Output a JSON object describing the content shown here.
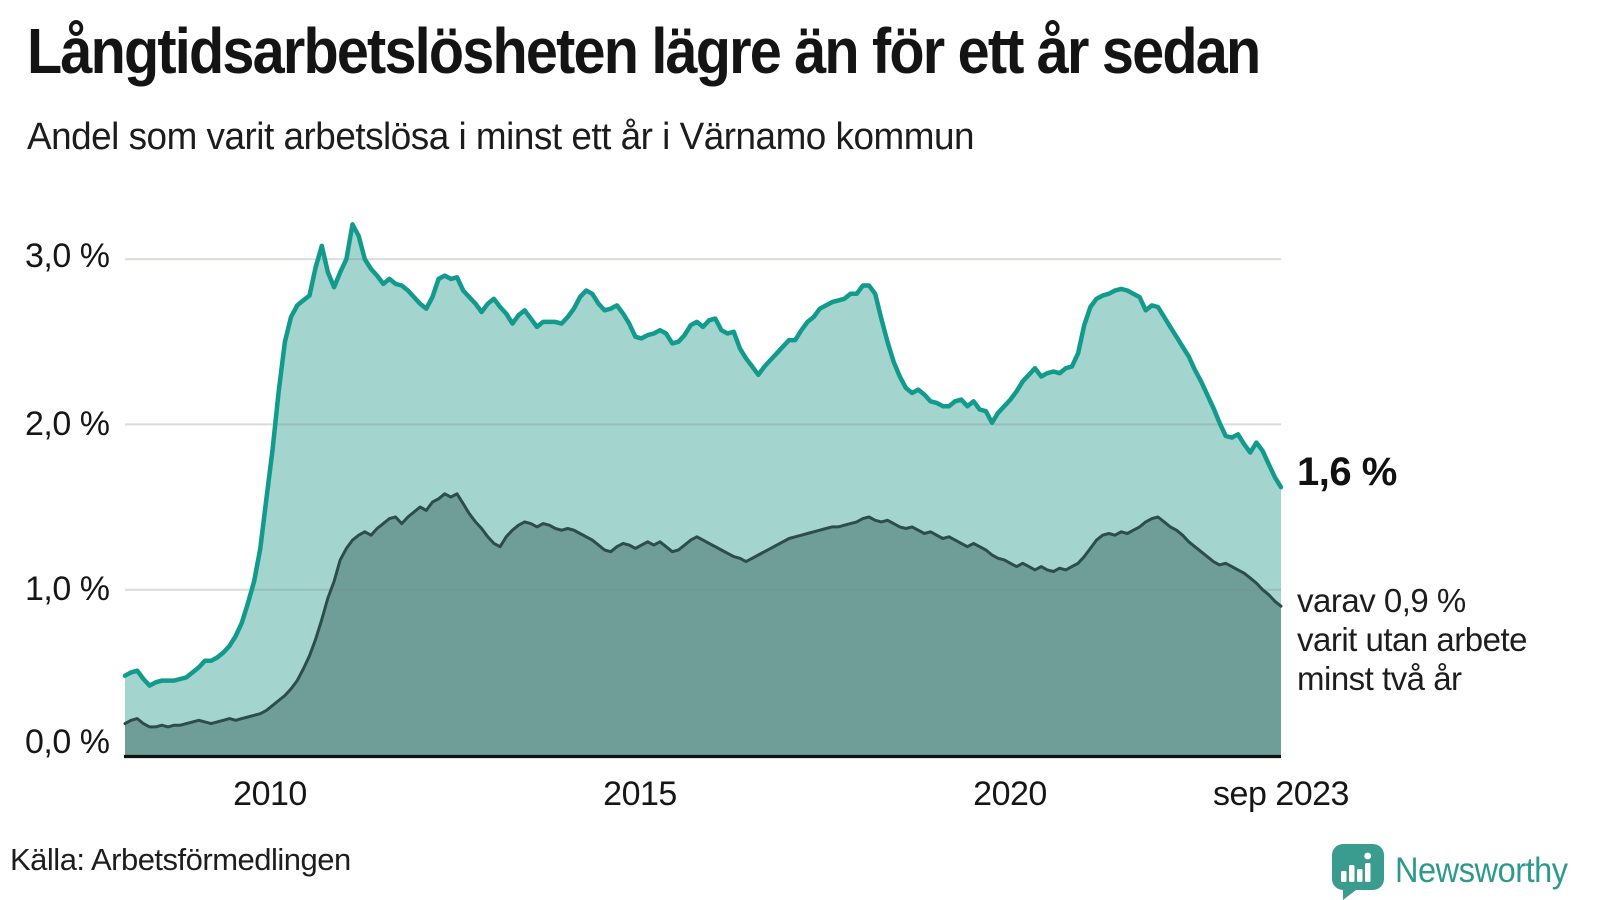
{
  "chart_data": {
    "type": "area",
    "title": "Långtidsarbetslösheten lägre än för ett år sedan",
    "subtitle": "Andel som varit arbetslösa i minst ett år i Värnamo kommun",
    "unit": "percent",
    "period": {
      "start": "2008-01",
      "end": "2023-09",
      "frequency": "monthly"
    },
    "ylim": [
      0,
      3.35
    ],
    "grid": "horizontal",
    "y_ticks": [
      {
        "value": 0,
        "label": "0,0 %"
      },
      {
        "value": 1,
        "label": "1,0 %"
      },
      {
        "value": 2,
        "label": "2,0 %"
      },
      {
        "value": 3,
        "label": "3,0 %"
      }
    ],
    "x_ticks": [
      {
        "label": "2010"
      },
      {
        "label": "2015"
      },
      {
        "label": "2020"
      },
      {
        "label": "sep 2023"
      }
    ],
    "series": [
      {
        "name": "Andel arbetslösa minst ett år",
        "color": "#129a8d",
        "fill": "#a3d4cd",
        "last_value": 1.6,
        "values": [
          0.48,
          0.5,
          0.51,
          0.46,
          0.42,
          0.44,
          0.45,
          0.45,
          0.45,
          0.46,
          0.47,
          0.5,
          0.53,
          0.57,
          0.57,
          0.59,
          0.62,
          0.66,
          0.72,
          0.8,
          0.92,
          1.05,
          1.25,
          1.55,
          1.85,
          2.2,
          2.5,
          2.65,
          2.72,
          2.75,
          2.78,
          2.95,
          3.08,
          2.92,
          2.83,
          2.92,
          3.0,
          3.21,
          3.14,
          3.0,
          2.94,
          2.9,
          2.85,
          2.88,
          2.85,
          2.84,
          2.81,
          2.77,
          2.73,
          2.7,
          2.77,
          2.88,
          2.9,
          2.88,
          2.89,
          2.81,
          2.77,
          2.73,
          2.68,
          2.73,
          2.76,
          2.71,
          2.67,
          2.61,
          2.66,
          2.69,
          2.64,
          2.59,
          2.62,
          2.62,
          2.62,
          2.61,
          2.65,
          2.7,
          2.77,
          2.81,
          2.79,
          2.73,
          2.69,
          2.7,
          2.72,
          2.67,
          2.61,
          2.53,
          2.52,
          2.54,
          2.55,
          2.57,
          2.55,
          2.49,
          2.5,
          2.54,
          2.6,
          2.62,
          2.59,
          2.63,
          2.64,
          2.57,
          2.55,
          2.56,
          2.46,
          2.4,
          2.35,
          2.3,
          2.35,
          2.39,
          2.43,
          2.47,
          2.51,
          2.51,
          2.57,
          2.62,
          2.65,
          2.7,
          2.72,
          2.74,
          2.75,
          2.76,
          2.79,
          2.79,
          2.84,
          2.84,
          2.79,
          2.64,
          2.5,
          2.38,
          2.29,
          2.22,
          2.19,
          2.21,
          2.18,
          2.14,
          2.13,
          2.11,
          2.11,
          2.14,
          2.15,
          2.11,
          2.14,
          2.09,
          2.08,
          2.01,
          2.07,
          2.11,
          2.15,
          2.2,
          2.26,
          2.3,
          2.34,
          2.29,
          2.31,
          2.32,
          2.31,
          2.34,
          2.35,
          2.43,
          2.6,
          2.71,
          2.76,
          2.78,
          2.79,
          2.81,
          2.82,
          2.81,
          2.79,
          2.77,
          2.69,
          2.72,
          2.71,
          2.65,
          2.59,
          2.53,
          2.47,
          2.41,
          2.33,
          2.26,
          2.18,
          2.1,
          2.01,
          1.93,
          1.92,
          1.94,
          1.88,
          1.83,
          1.89,
          1.84,
          1.76,
          1.68,
          1.62
        ]
      },
      {
        "name": "Andel arbetslösa minst två år",
        "color": "#2d4d49",
        "fill": "#6f9e99",
        "last_value": 0.9,
        "values": [
          0.19,
          0.21,
          0.22,
          0.19,
          0.17,
          0.17,
          0.18,
          0.17,
          0.18,
          0.18,
          0.19,
          0.2,
          0.21,
          0.2,
          0.19,
          0.2,
          0.21,
          0.22,
          0.21,
          0.22,
          0.23,
          0.24,
          0.25,
          0.27,
          0.3,
          0.33,
          0.36,
          0.4,
          0.45,
          0.52,
          0.6,
          0.7,
          0.82,
          0.95,
          1.05,
          1.18,
          1.25,
          1.3,
          1.33,
          1.35,
          1.33,
          1.37,
          1.4,
          1.43,
          1.44,
          1.4,
          1.44,
          1.47,
          1.5,
          1.48,
          1.53,
          1.55,
          1.58,
          1.56,
          1.58,
          1.52,
          1.46,
          1.41,
          1.37,
          1.32,
          1.28,
          1.26,
          1.32,
          1.36,
          1.39,
          1.41,
          1.4,
          1.38,
          1.4,
          1.39,
          1.37,
          1.36,
          1.37,
          1.36,
          1.34,
          1.32,
          1.3,
          1.27,
          1.24,
          1.23,
          1.26,
          1.28,
          1.27,
          1.25,
          1.27,
          1.29,
          1.27,
          1.29,
          1.26,
          1.23,
          1.24,
          1.27,
          1.3,
          1.32,
          1.3,
          1.28,
          1.26,
          1.24,
          1.22,
          1.2,
          1.19,
          1.17,
          1.19,
          1.21,
          1.23,
          1.25,
          1.27,
          1.29,
          1.31,
          1.32,
          1.33,
          1.34,
          1.35,
          1.36,
          1.37,
          1.38,
          1.38,
          1.39,
          1.4,
          1.41,
          1.43,
          1.44,
          1.42,
          1.41,
          1.42,
          1.4,
          1.38,
          1.37,
          1.38,
          1.36,
          1.34,
          1.35,
          1.33,
          1.31,
          1.32,
          1.3,
          1.28,
          1.26,
          1.28,
          1.26,
          1.24,
          1.21,
          1.19,
          1.18,
          1.16,
          1.14,
          1.16,
          1.14,
          1.12,
          1.14,
          1.12,
          1.11,
          1.13,
          1.12,
          1.14,
          1.16,
          1.2,
          1.25,
          1.3,
          1.33,
          1.34,
          1.33,
          1.35,
          1.34,
          1.36,
          1.38,
          1.41,
          1.43,
          1.44,
          1.41,
          1.38,
          1.36,
          1.33,
          1.29,
          1.26,
          1.23,
          1.2,
          1.17,
          1.15,
          1.16,
          1.14,
          1.12,
          1.1,
          1.07,
          1.04,
          1.0,
          0.97,
          0.93,
          0.9
        ]
      }
    ],
    "annotations": {
      "end_value_label": "1,6 %",
      "secondary_lines": [
        "varav 0,9 %",
        "varit utan arbete",
        "minst två år"
      ]
    },
    "legend_position": "right-annotations"
  },
  "footer": {
    "source": "Källa: Arbetsförmedlingen",
    "brand": "Newsworthy",
    "brand_color": "#2e998c"
  }
}
